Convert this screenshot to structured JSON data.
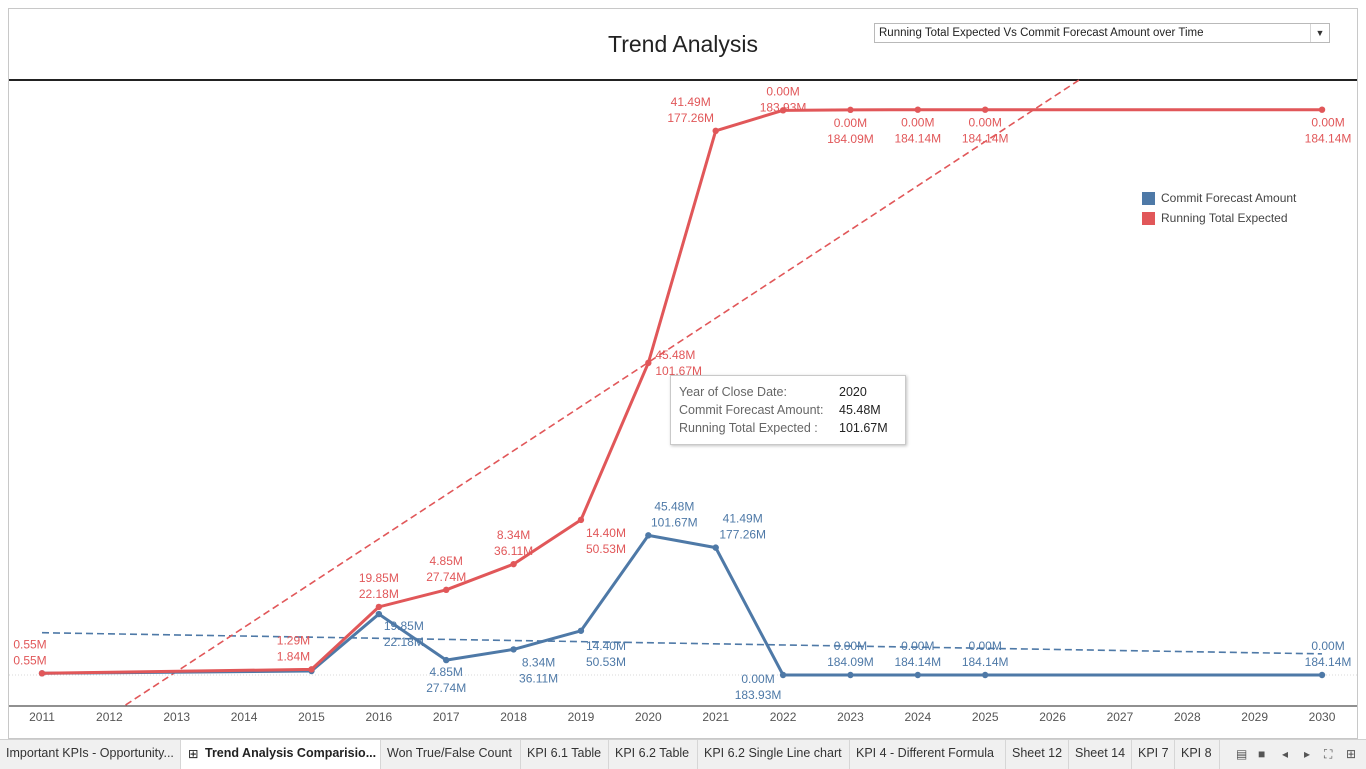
{
  "dashboard": {
    "title": "Trend Analysis",
    "selector_value": "Running Total Expected Vs Commit Forecast Amount over Time"
  },
  "chart_data": {
    "type": "line",
    "x": [
      2011,
      2015,
      2016,
      2017,
      2018,
      2019,
      2020,
      2021,
      2022,
      2023,
      2024,
      2025,
      2030
    ],
    "x_ticks": [
      "2011",
      "2012",
      "2013",
      "2014",
      "2015",
      "2016",
      "2017",
      "2018",
      "2019",
      "2020",
      "2021",
      "2022",
      "2023",
      "2024",
      "2025",
      "2026",
      "2027",
      "2028",
      "2029",
      "2030"
    ],
    "series": [
      {
        "name": "Commit Forecast Amount",
        "color": "#4e79a7",
        "values": [
          0.55,
          1.29,
          19.85,
          4.85,
          8.34,
          14.4,
          45.48,
          41.49,
          0.0,
          0.0,
          0.0,
          0.0,
          0.0
        ],
        "labels": [
          "",
          "",
          "19.85M",
          "4.85M",
          "8.34M",
          "14.40M",
          "45.48M",
          "41.49M",
          "0.00M",
          "0.00M",
          "0.00M",
          "0.00M",
          "0.00M"
        ],
        "sub_labels": [
          "",
          "",
          "22.18M",
          "27.74M",
          "36.11M",
          "50.53M",
          "101.67M",
          "177.26M",
          "183.93M",
          "184.09M",
          "184.14M",
          "184.14M",
          "184.14M"
        ]
      },
      {
        "name": "Running Total Expected",
        "color": "#e15759",
        "values": [
          0.55,
          1.84,
          22.18,
          27.74,
          36.11,
          50.53,
          101.67,
          177.26,
          183.93,
          184.09,
          184.14,
          184.14,
          184.14
        ],
        "labels": [
          "0.55M",
          "1.29M",
          "19.85M",
          "4.85M",
          "8.34M",
          "14.40M",
          "45.48M",
          "41.49M",
          "0.00M",
          "0.00M",
          "0.00M",
          "0.00M",
          "0.00M"
        ],
        "sub_labels": [
          "0.55M",
          "1.84M",
          "22.18M",
          "27.74M",
          "36.11M",
          "50.53M",
          "101.67M",
          "177.26M",
          "183.93M",
          "184.09M",
          "184.14M",
          "184.14M",
          "184.14M"
        ]
      }
    ],
    "trend_lines": true,
    "grid": false,
    "legend_position": "top-right"
  },
  "legend": {
    "items": [
      {
        "label": "Commit Forecast Amount",
        "color": "#4e79a7"
      },
      {
        "label": "Running Total Expected",
        "color": "#e15759"
      }
    ]
  },
  "tooltip": {
    "rows": [
      {
        "key": "Year of Close Date:",
        "value": "2020"
      },
      {
        "key": "Commit Forecast Amount:",
        "value": "45.48M"
      },
      {
        "key": "Running Total Expected :",
        "value": "101.67M"
      }
    ]
  },
  "tabs": [
    {
      "label": "Important KPIs - Opportunity..."
    },
    {
      "label": "Trend Analysis Comparisio...",
      "active": true
    },
    {
      "label": "Won True/False Count"
    },
    {
      "label": "KPI 6.1 Table"
    },
    {
      "label": "KPI 6.2 Table"
    },
    {
      "label": "KPI 6.2 Single Line chart"
    },
    {
      "label": "KPI 4 - Different Formula"
    },
    {
      "label": "Sheet 12"
    },
    {
      "label": "Sheet 14"
    },
    {
      "label": "KPI 7"
    },
    {
      "label": "KPI 8"
    }
  ]
}
